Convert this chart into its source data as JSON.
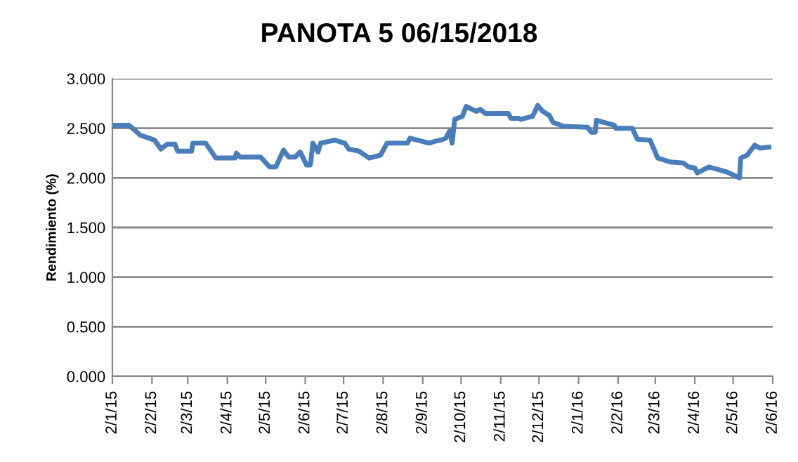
{
  "chart_data": {
    "type": "line",
    "title": "PANOTA 5 06/15/2018",
    "ylabel": "Rendimiento (%)",
    "x": [
      "2015-01-02",
      "2015-01-15",
      "2015-01-24",
      "2015-02-04",
      "2015-02-09",
      "2015-02-14",
      "2015-02-20",
      "2015-02-22",
      "2015-03-05",
      "2015-03-06",
      "2015-03-16",
      "2015-03-24",
      "2015-04-08",
      "2015-04-09",
      "2015-04-12",
      "2015-04-28",
      "2015-05-05",
      "2015-05-10",
      "2015-05-16",
      "2015-05-20",
      "2015-05-25",
      "2015-05-29",
      "2015-05-31",
      "2015-06-03",
      "2015-06-06",
      "2015-06-08",
      "2015-06-12",
      "2015-06-14",
      "2015-06-25",
      "2015-07-03",
      "2015-07-06",
      "2015-07-14",
      "2015-07-22",
      "2015-07-31",
      "2015-08-05",
      "2015-08-21",
      "2015-08-23",
      "2015-09-07",
      "2015-09-12",
      "2015-09-16",
      "2015-09-20",
      "2015-09-23",
      "2015-09-25",
      "2015-09-27",
      "2015-10-03",
      "2015-10-06",
      "2015-10-14",
      "2015-10-17",
      "2015-10-21",
      "2015-11-08",
      "2015-11-10",
      "2015-11-16",
      "2015-11-18",
      "2015-11-27",
      "2015-12-01",
      "2015-12-05",
      "2015-12-10",
      "2015-12-13",
      "2015-12-21",
      "2016-01-09",
      "2016-01-12",
      "2016-01-15",
      "2016-01-16",
      "2016-01-30",
      "2016-01-31",
      "2016-02-13",
      "2016-02-17",
      "2016-02-27",
      "2016-03-04",
      "2016-03-14",
      "2016-03-24",
      "2016-03-28",
      "2016-04-02",
      "2016-04-04",
      "2016-04-10",
      "2016-04-13",
      "2016-04-27",
      "2016-05-07",
      "2016-05-08",
      "2016-05-13",
      "2016-05-19",
      "2016-05-23",
      "2016-05-30"
    ],
    "series": [
      {
        "color": "#4a7ebb",
        "values": [
          2.53,
          2.53,
          2.43,
          2.38,
          2.29,
          2.34,
          2.34,
          2.27,
          2.27,
          2.35,
          2.35,
          2.2,
          2.2,
          2.25,
          2.21,
          2.21,
          2.11,
          2.11,
          2.28,
          2.21,
          2.21,
          2.26,
          2.21,
          2.13,
          2.13,
          2.35,
          2.26,
          2.35,
          2.38,
          2.35,
          2.29,
          2.27,
          2.2,
          2.23,
          2.35,
          2.35,
          2.4,
          2.35,
          2.37,
          2.38,
          2.4,
          2.47,
          2.35,
          2.59,
          2.62,
          2.72,
          2.67,
          2.69,
          2.65,
          2.65,
          2.6,
          2.6,
          2.59,
          2.62,
          2.73,
          2.67,
          2.63,
          2.56,
          2.52,
          2.51,
          2.46,
          2.46,
          2.58,
          2.53,
          2.5,
          2.5,
          2.39,
          2.38,
          2.2,
          2.16,
          2.15,
          2.11,
          2.1,
          2.05,
          2.09,
          2.11,
          2.06,
          2.0,
          2.2,
          2.23,
          2.33,
          2.3,
          2.31
        ]
      }
    ],
    "xlim": [
      "2015-01-02",
      "2016-06-02"
    ],
    "xticks": [
      {
        "value": "2015-01-02",
        "label": "2/1/15"
      },
      {
        "value": "2015-02-02",
        "label": "2/2/15"
      },
      {
        "value": "2015-03-02",
        "label": "2/3/15"
      },
      {
        "value": "2015-04-02",
        "label": "2/4/15"
      },
      {
        "value": "2015-05-02",
        "label": "2/5/15"
      },
      {
        "value": "2015-06-02",
        "label": "2/6/15"
      },
      {
        "value": "2015-07-02",
        "label": "2/7/15"
      },
      {
        "value": "2015-08-02",
        "label": "2/8/15"
      },
      {
        "value": "2015-09-02",
        "label": "2/9/15"
      },
      {
        "value": "2015-10-02",
        "label": "2/10/15"
      },
      {
        "value": "2015-11-02",
        "label": "2/11/15"
      },
      {
        "value": "2015-12-02",
        "label": "2/12/15"
      },
      {
        "value": "2016-01-02",
        "label": "2/1/16"
      },
      {
        "value": "2016-02-02",
        "label": "2/2/16"
      },
      {
        "value": "2016-03-02",
        "label": "2/3/16"
      },
      {
        "value": "2016-04-02",
        "label": "2/4/16"
      },
      {
        "value": "2016-05-02",
        "label": "2/5/16"
      },
      {
        "value": "2016-06-02",
        "label": "2/6/16"
      }
    ],
    "ylim": [
      0,
      3
    ],
    "yticks": [
      {
        "value": 0,
        "label": "0.000"
      },
      {
        "value": 0.5,
        "label": "0.500"
      },
      {
        "value": 1,
        "label": "1.000"
      },
      {
        "value": 1.5,
        "label": "1.500"
      },
      {
        "value": 2,
        "label": "2.000"
      },
      {
        "value": 2.5,
        "label": "2.500"
      },
      {
        "value": 3,
        "label": "3.000"
      }
    ],
    "grid": "y",
    "marker": "none",
    "line_style": "solid"
  }
}
